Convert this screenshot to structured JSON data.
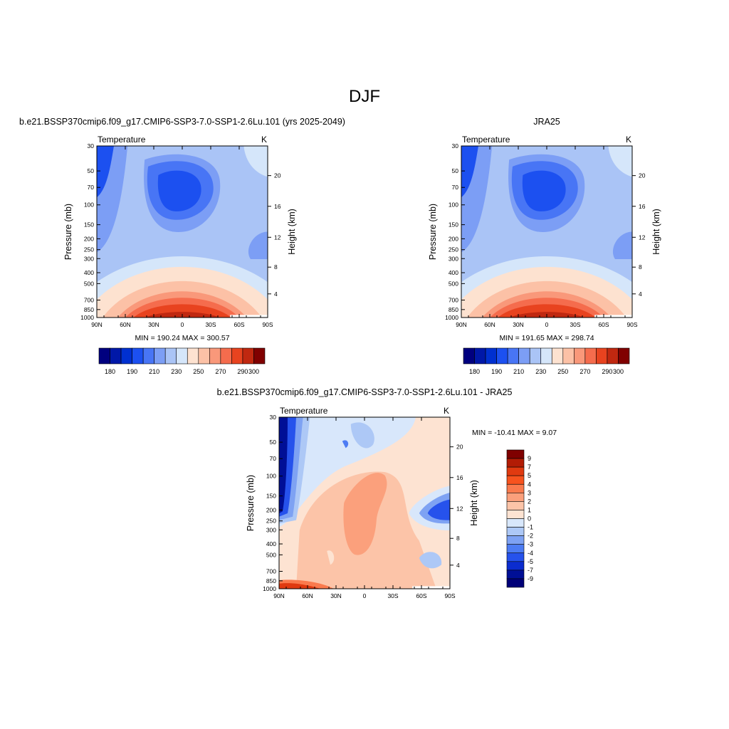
{
  "figure": {
    "title": "DJF"
  },
  "chart_data": [
    {
      "type": "heatmap",
      "id": "model",
      "title": "b.e21.BSSP370cmip6.f09_g17.CMIP6-SSP3-7.0-SSP1-2.6Lu.101 (yrs 2025-2049)",
      "left_string": "Temperature",
      "right_string": "K",
      "xlabel": "",
      "ylabel": "Pressure (mb)",
      "y2label": "Height (km)",
      "x_ticks": [
        "90N",
        "60N",
        "30N",
        "0",
        "30S",
        "60S",
        "90S"
      ],
      "y_ticks": [
        "30",
        "50",
        "70",
        "100",
        "150",
        "200",
        "250",
        "300",
        "400",
        "500",
        "700",
        "850",
        "1000"
      ],
      "y2_ticks": [
        "20",
        "16",
        "12",
        "8",
        "4"
      ],
      "stats": "MIN = 190.24  MAX = 300.57",
      "colorbar_labels": [
        "180",
        "190",
        "210",
        "230",
        "250",
        "270",
        "290",
        "300"
      ],
      "colorbar_orientation": "horizontal"
    },
    {
      "type": "heatmap",
      "id": "obs",
      "title": "JRA25",
      "left_string": "Temperature",
      "right_string": "K",
      "xlabel": "",
      "ylabel": "Pressure (mb)",
      "y2label": "Height (km)",
      "x_ticks": [
        "90N",
        "60N",
        "30N",
        "0",
        "30S",
        "60S",
        "90S"
      ],
      "y_ticks": [
        "30",
        "50",
        "70",
        "100",
        "150",
        "200",
        "250",
        "300",
        "400",
        "500",
        "700",
        "850",
        "1000"
      ],
      "y2_ticks": [
        "20",
        "16",
        "12",
        "8",
        "4"
      ],
      "stats": "MIN = 191.65  MAX = 298.74",
      "colorbar_labels": [
        "180",
        "190",
        "210",
        "230",
        "250",
        "270",
        "290",
        "300"
      ],
      "colorbar_orientation": "horizontal"
    },
    {
      "type": "heatmap",
      "id": "diff",
      "title": "b.e21.BSSP370cmip6.f09_g17.CMIP6-SSP3-7.0-SSP1-2.6Lu.101 - JRA25",
      "left_string": "Temperature",
      "right_string": "K",
      "xlabel": "",
      "ylabel": "Pressure (mb)",
      "y2label": "Height (km)",
      "x_ticks": [
        "90N",
        "60N",
        "30N",
        "0",
        "30S",
        "60S",
        "90S"
      ],
      "y_ticks": [
        "30",
        "50",
        "70",
        "100",
        "150",
        "200",
        "250",
        "300",
        "400",
        "500",
        "700",
        "850",
        "1000"
      ],
      "y2_ticks": [
        "20",
        "16",
        "12",
        "8",
        "4"
      ],
      "stats": "MIN = -10.41  MAX =   9.07",
      "colorbar_labels": [
        "9",
        "7",
        "5",
        "4",
        "3",
        "2",
        "1",
        "0",
        "-1",
        "-2",
        "-3",
        "-4",
        "-5",
        "-7",
        "-9"
      ],
      "colorbar_orientation": "vertical"
    }
  ],
  "palettes": {
    "temperature": [
      "#00007f",
      "#0018a8",
      "#0030d0",
      "#1c50f0",
      "#4875f5",
      "#7c9ef5",
      "#aac4f6",
      "#d5e6fa",
      "#fde2d0",
      "#fcc1a6",
      "#f9987a",
      "#f56c4d",
      "#e8431f",
      "#c02810",
      "#800000"
    ],
    "difference": [
      "#7f0000",
      "#b21c05",
      "#e03a10",
      "#f7531e",
      "#fa7a4d",
      "#fba07c",
      "#fcc4a8",
      "#fde3d2",
      "#d8e7fb",
      "#adc8f6",
      "#7ea2f3",
      "#4d7cf3",
      "#2652ec",
      "#0b2ccf",
      "#000f96",
      "#000078"
    ]
  }
}
